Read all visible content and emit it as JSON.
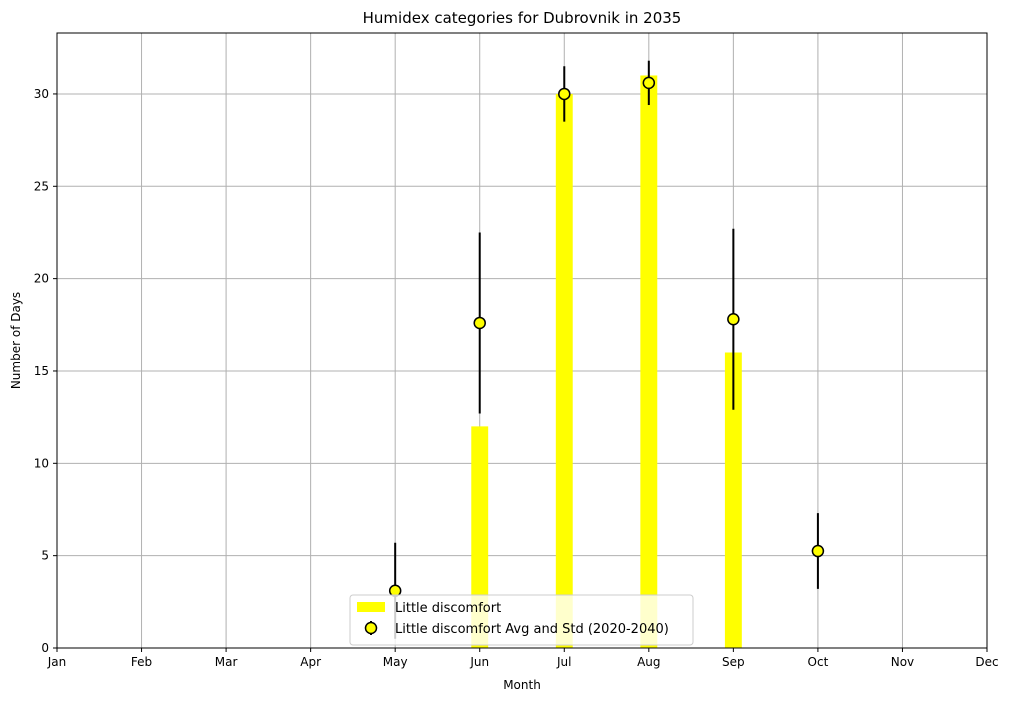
{
  "chart_data": {
    "type": "bar",
    "title": "Humidex categories for Dubrovnik in 2035",
    "xlabel": "Month",
    "ylabel": "Number of Days",
    "categories": [
      "Jan",
      "Feb",
      "Mar",
      "Apr",
      "May",
      "Jun",
      "Jul",
      "Aug",
      "Sep",
      "Oct",
      "Nov",
      "Dec"
    ],
    "ylim": [
      0,
      33.3
    ],
    "yticks": [
      0,
      5,
      10,
      15,
      20,
      25,
      30
    ],
    "grid": true,
    "legend_position": "bottom-center",
    "bar_color": "#ffff00",
    "marker_color": "#ffff00",
    "errorbar_color": "#000000",
    "series": [
      {
        "name": "Little discomfort",
        "kind": "bar",
        "values": [
          0,
          0,
          0,
          0,
          0,
          12,
          30,
          31,
          16,
          0,
          0,
          0
        ]
      },
      {
        "name": "Little discomfort Avg and Std (2020-2040)",
        "kind": "errorbar",
        "points": [
          {
            "month": "May",
            "avg": 3.1,
            "std": 2.6
          },
          {
            "month": "Jun",
            "avg": 17.6,
            "std": 4.9
          },
          {
            "month": "Jul",
            "avg": 30.0,
            "std": 1.5
          },
          {
            "month": "Aug",
            "avg": 30.6,
            "std": 1.2
          },
          {
            "month": "Sep",
            "avg": 17.8,
            "std": 4.9
          },
          {
            "month": "Oct",
            "avg": 5.25,
            "std": 2.05
          }
        ]
      }
    ]
  }
}
